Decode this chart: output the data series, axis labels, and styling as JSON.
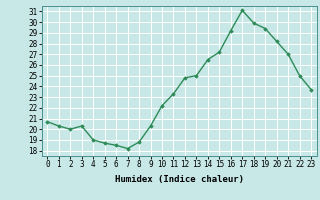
{
  "x": [
    0,
    1,
    2,
    3,
    4,
    5,
    6,
    7,
    8,
    9,
    10,
    11,
    12,
    13,
    14,
    15,
    16,
    17,
    18,
    19,
    20,
    21,
    22,
    23
  ],
  "y": [
    20.7,
    20.3,
    20.0,
    20.3,
    19.0,
    18.7,
    18.5,
    18.2,
    18.8,
    20.3,
    22.2,
    23.3,
    24.8,
    25.0,
    26.5,
    27.2,
    29.2,
    31.1,
    29.9,
    29.4,
    28.2,
    27.0,
    25.0,
    23.7
  ],
  "line_color": "#2e8b57",
  "marker": "D",
  "marker_size": 1.8,
  "bg_color": "#c8e8e8",
  "grid_color": "#ffffff",
  "xlabel": "Humidex (Indice chaleur)",
  "ylabel": "",
  "xlim": [
    -0.5,
    23.5
  ],
  "ylim": [
    17.5,
    31.5
  ],
  "yticks": [
    18,
    19,
    20,
    21,
    22,
    23,
    24,
    25,
    26,
    27,
    28,
    29,
    30,
    31
  ],
  "xticks": [
    0,
    1,
    2,
    3,
    4,
    5,
    6,
    7,
    8,
    9,
    10,
    11,
    12,
    13,
    14,
    15,
    16,
    17,
    18,
    19,
    20,
    21,
    22,
    23
  ],
  "tick_fontsize": 5.5,
  "label_fontsize": 6.5,
  "line_width": 1.0,
  "spine_color": "#4a9090"
}
